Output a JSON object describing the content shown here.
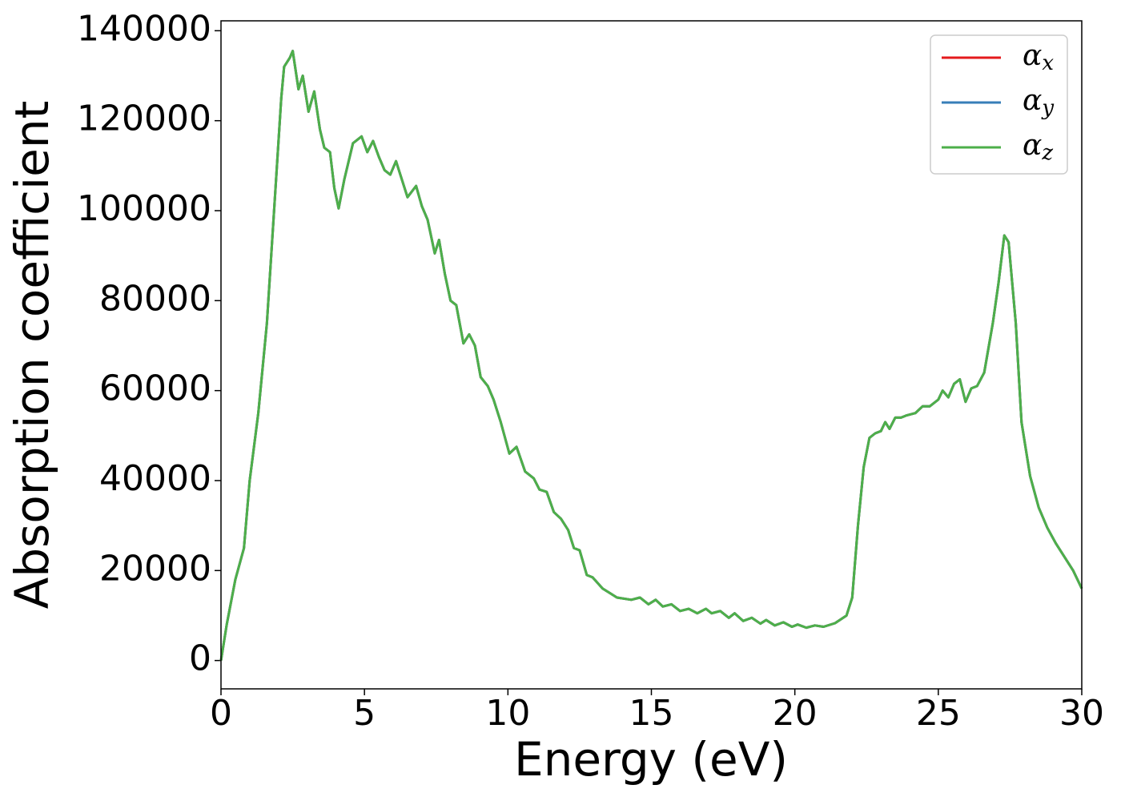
{
  "chart_data": {
    "type": "line",
    "xlabel": "Energy (eV)",
    "ylabel": "Absorption coefficient",
    "legend": "upper right",
    "xlim": [
      0,
      30
    ],
    "ylim": [
      -6300,
      142200
    ],
    "xticks": [
      0,
      5,
      10,
      15,
      20,
      25,
      30
    ],
    "yticks": [
      0,
      20000,
      40000,
      60000,
      80000,
      100000,
      120000,
      140000
    ],
    "x": [
      0,
      0.2,
      0.5,
      0.8,
      1.0,
      1.3,
      1.6,
      1.9,
      2.1,
      2.2,
      2.4,
      2.5,
      2.7,
      2.85,
      3.05,
      3.25,
      3.45,
      3.6,
      3.8,
      3.95,
      4.1,
      4.3,
      4.6,
      4.9,
      5.1,
      5.3,
      5.5,
      5.7,
      5.9,
      6.1,
      6.3,
      6.5,
      6.8,
      7.0,
      7.2,
      7.45,
      7.6,
      7.8,
      8.0,
      8.2,
      8.45,
      8.65,
      8.85,
      9.05,
      9.3,
      9.5,
      9.75,
      10.05,
      10.3,
      10.6,
      10.9,
      11.1,
      11.35,
      11.6,
      11.85,
      12.1,
      12.3,
      12.5,
      12.75,
      12.95,
      13.3,
      13.8,
      14.3,
      14.6,
      14.9,
      15.15,
      15.4,
      15.7,
      16.0,
      16.3,
      16.6,
      16.9,
      17.1,
      17.4,
      17.7,
      17.9,
      18.2,
      18.5,
      18.8,
      19.0,
      19.3,
      19.6,
      19.9,
      20.1,
      20.4,
      20.7,
      21.0,
      21.4,
      21.8,
      22.0,
      22.2,
      22.4,
      22.6,
      22.8,
      23.0,
      23.15,
      23.3,
      23.5,
      23.7,
      23.9,
      24.2,
      24.45,
      24.7,
      25.0,
      25.15,
      25.35,
      25.55,
      25.75,
      25.95,
      26.15,
      26.35,
      26.6,
      26.9,
      27.1,
      27.3,
      27.45,
      27.7,
      27.9,
      28.2,
      28.5,
      28.8,
      29.1,
      29.4,
      29.7,
      30.0
    ],
    "series": [
      {
        "name": "αx",
        "color": "#e41a1c",
        "values": [
          0,
          8000,
          18000,
          25000,
          40000,
          55000,
          75000,
          105000,
          125000,
          132000,
          134000,
          135500,
          127000,
          130000,
          122000,
          126500,
          118000,
          114000,
          113000,
          105000,
          100500,
          107000,
          115000,
          116500,
          113000,
          115500,
          112000,
          109000,
          108000,
          111000,
          107000,
          103000,
          105500,
          101000,
          98000,
          90500,
          93500,
          86000,
          80000,
          79000,
          70500,
          72500,
          70000,
          63000,
          61000,
          58000,
          53000,
          46000,
          47500,
          42000,
          40500,
          38000,
          37500,
          33000,
          31500,
          29000,
          25000,
          24500,
          19000,
          18500,
          16000,
          14000,
          13500,
          14000,
          12500,
          13500,
          12000,
          12500,
          11000,
          11500,
          10500,
          11500,
          10500,
          11000,
          9500,
          10500,
          8800,
          9500,
          8200,
          9000,
          7800,
          8500,
          7500,
          8000,
          7300,
          7800,
          7500,
          8300,
          10000,
          14000,
          30000,
          43000,
          49500,
          50500,
          51000,
          53000,
          51500,
          54000,
          54000,
          54500,
          55000,
          56500,
          56500,
          58000,
          60000,
          58500,
          61500,
          62500,
          57500,
          60500,
          61000,
          64000,
          75000,
          84000,
          94500,
          93000,
          75000,
          53000,
          41000,
          34000,
          29500,
          26000,
          23000,
          20000,
          16000
        ]
      },
      {
        "name": "αy",
        "color": "#377eb8",
        "values": [
          0,
          8000,
          18000,
          25000,
          40000,
          55000,
          75000,
          105000,
          125000,
          132000,
          134000,
          135500,
          127000,
          130000,
          122000,
          126500,
          118000,
          114000,
          113000,
          105000,
          100500,
          107000,
          115000,
          116500,
          113000,
          115500,
          112000,
          109000,
          108000,
          111000,
          107000,
          103000,
          105500,
          101000,
          98000,
          90500,
          93500,
          86000,
          80000,
          79000,
          70500,
          72500,
          70000,
          63000,
          61000,
          58000,
          53000,
          46000,
          47500,
          42000,
          40500,
          38000,
          37500,
          33000,
          31500,
          29000,
          25000,
          24500,
          19000,
          18500,
          16000,
          14000,
          13500,
          14000,
          12500,
          13500,
          12000,
          12500,
          11000,
          11500,
          10500,
          11500,
          10500,
          11000,
          9500,
          10500,
          8800,
          9500,
          8200,
          9000,
          7800,
          8500,
          7500,
          8000,
          7300,
          7800,
          7500,
          8300,
          10000,
          14000,
          30000,
          43000,
          49500,
          50500,
          51000,
          53000,
          51500,
          54000,
          54000,
          54500,
          55000,
          56500,
          56500,
          58000,
          60000,
          58500,
          61500,
          62500,
          57500,
          60500,
          61000,
          64000,
          75000,
          84000,
          94500,
          93000,
          75000,
          53000,
          41000,
          34000,
          29500,
          26000,
          23000,
          20000,
          16000
        ]
      },
      {
        "name": "αz",
        "color": "#4daf4a",
        "values": [
          0,
          8000,
          18000,
          25000,
          40000,
          55000,
          75000,
          105000,
          125000,
          132000,
          134000,
          135500,
          127000,
          130000,
          122000,
          126500,
          118000,
          114000,
          113000,
          105000,
          100500,
          107000,
          115000,
          116500,
          113000,
          115500,
          112000,
          109000,
          108000,
          111000,
          107000,
          103000,
          105500,
          101000,
          98000,
          90500,
          93500,
          86000,
          80000,
          79000,
          70500,
          72500,
          70000,
          63000,
          61000,
          58000,
          53000,
          46000,
          47500,
          42000,
          40500,
          38000,
          37500,
          33000,
          31500,
          29000,
          25000,
          24500,
          19000,
          18500,
          16000,
          14000,
          13500,
          14000,
          12500,
          13500,
          12000,
          12500,
          11000,
          11500,
          10500,
          11500,
          10500,
          11000,
          9500,
          10500,
          8800,
          9500,
          8200,
          9000,
          7800,
          8500,
          7500,
          8000,
          7300,
          7800,
          7500,
          8300,
          10000,
          14000,
          30000,
          43000,
          49500,
          50500,
          51000,
          53000,
          51500,
          54000,
          54000,
          54500,
          55000,
          56500,
          56500,
          58000,
          60000,
          58500,
          61500,
          62500,
          57500,
          60500,
          61000,
          64000,
          75000,
          84000,
          94500,
          93000,
          75000,
          53000,
          41000,
          34000,
          29500,
          26000,
          23000,
          20000,
          16000
        ]
      }
    ]
  }
}
